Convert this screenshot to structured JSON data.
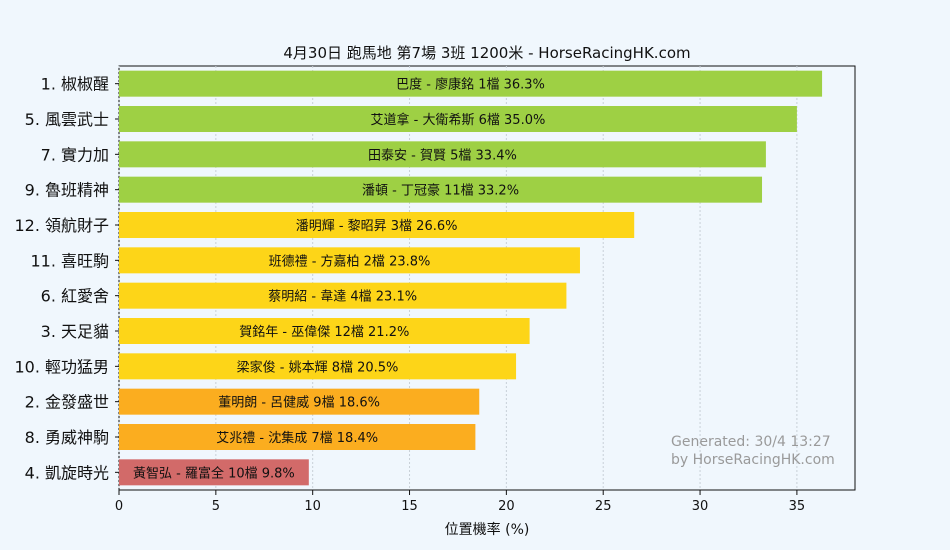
{
  "chart_data": {
    "type": "bar",
    "orientation": "horizontal",
    "title": "4月30日  跑馬地  第7場  3班  1200米 - HorseRacingHK.com",
    "xlabel": "位置機率 (%)",
    "ylabel": "",
    "xlim": [
      0,
      38
    ],
    "xticks": [
      0,
      5,
      10,
      15,
      20,
      25,
      30,
      35
    ],
    "grid": "vertical",
    "categories": [
      "1. 椒椒醒",
      "5. 風雲武士",
      "7. 實力加",
      "9. 魯班精神",
      "12. 領航財子",
      "11. 喜旺駒",
      "6. 紅愛舍",
      "3. 天足貓",
      "10. 輕功猛男",
      "2. 金發盛世",
      "8. 勇威神駒",
      "4. 凱旋時光"
    ],
    "values": [
      36.3,
      35.0,
      33.4,
      33.2,
      26.6,
      23.8,
      23.1,
      21.2,
      20.5,
      18.6,
      18.4,
      9.8
    ],
    "bar_labels": [
      "巴度 - 廖康銘 1檔  36.3%",
      "艾道拿 - 大衛希斯 6檔  35.0%",
      "田泰安 - 賀賢 5檔  33.4%",
      "潘頓 - 丁冠豪 11檔  33.2%",
      "潘明輝 - 黎昭昇 3檔  26.6%",
      "班德禮 - 方嘉柏 2檔  23.8%",
      "蔡明紹 - 韋達 4檔  23.1%",
      "賀銘年 - 巫偉傑 12檔  21.2%",
      "梁家俊 - 姚本輝 8檔  20.5%",
      "董明朗 - 呂健威 9檔  18.6%",
      "艾兆禮 - 沈集成 7檔  18.4%",
      "黃智弘 - 羅富全 10檔  9.8%"
    ],
    "colors": [
      "#9ed044",
      "#9ed044",
      "#9ed044",
      "#9ed044",
      "#fdd518",
      "#fdd518",
      "#fdd518",
      "#fdd518",
      "#fdd518",
      "#fbad1f",
      "#fbad1f",
      "#d26a69"
    ],
    "annotation": [
      "Generated: 30/4 13:27",
      "by HorseRacingHK.com"
    ]
  }
}
